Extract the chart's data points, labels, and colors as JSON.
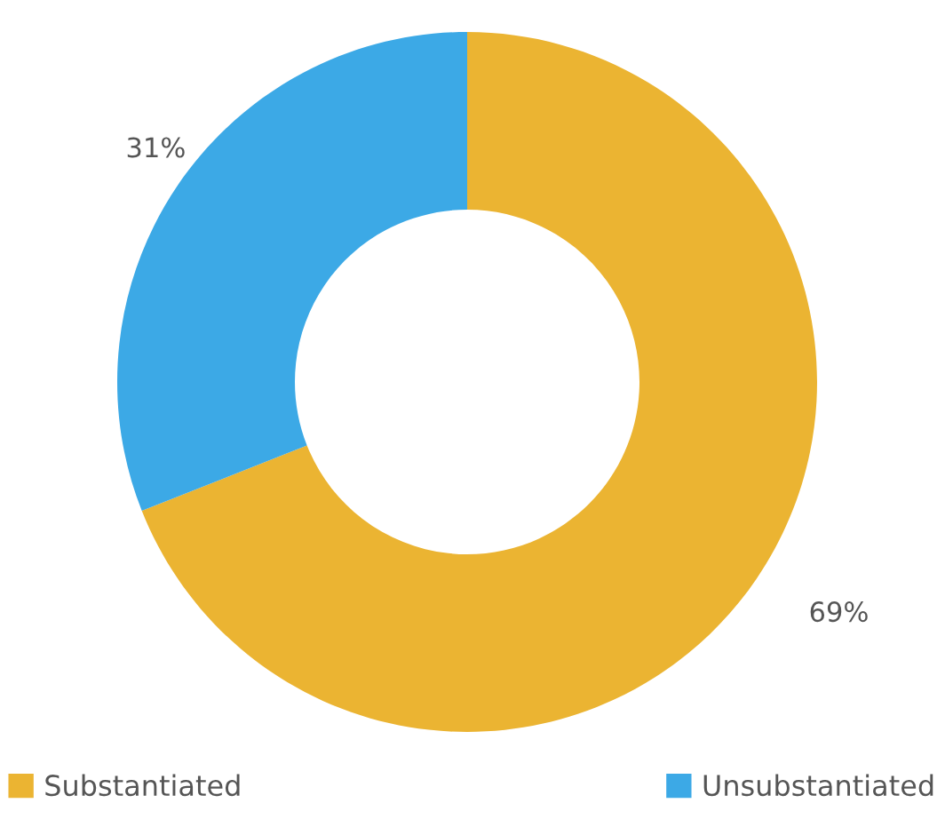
{
  "chart_data": {
    "type": "donut",
    "categories": [
      "Substantiated",
      "Unsubstantiated"
    ],
    "values": [
      69,
      31
    ],
    "colors": [
      "#ebb432",
      "#3ca9e6"
    ],
    "value_labels": [
      "69%",
      "31%"
    ],
    "legend": "bottom"
  }
}
